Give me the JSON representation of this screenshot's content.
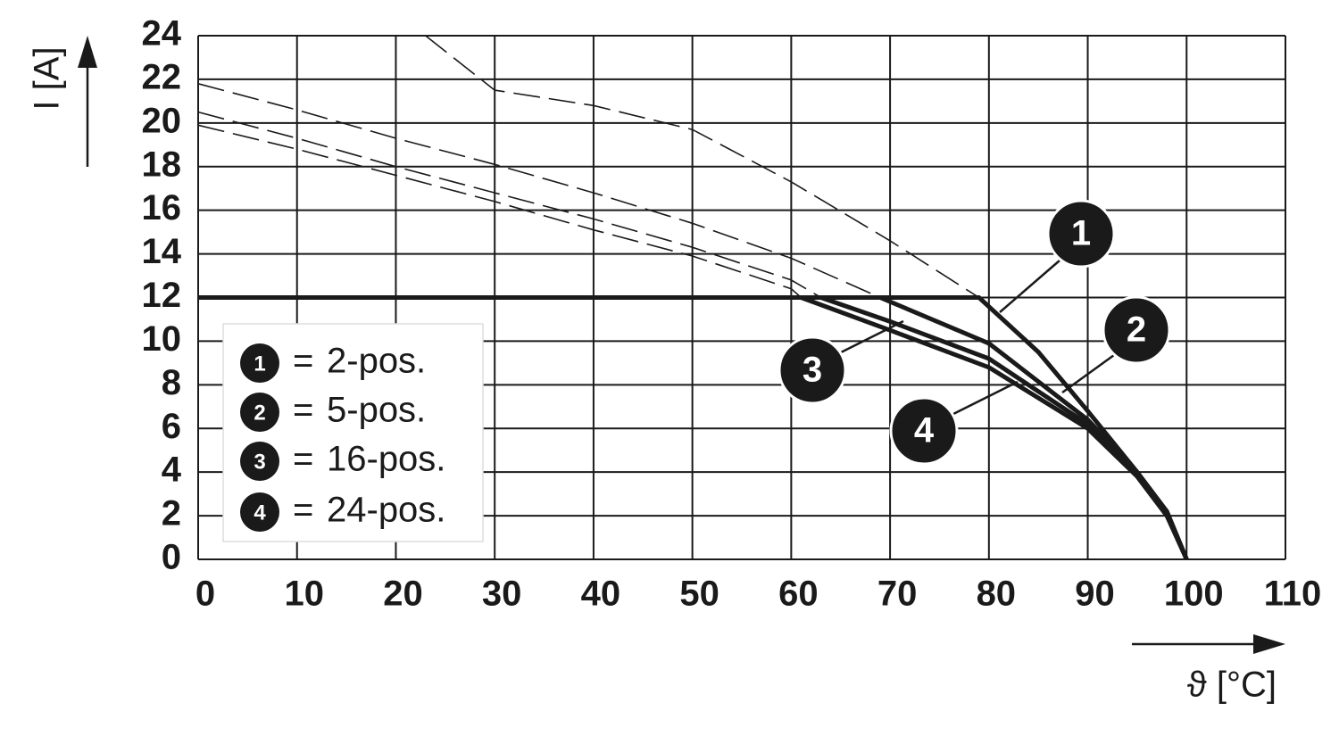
{
  "chart_data": {
    "type": "derating",
    "y_label": "I [A]",
    "x_label": "ϑ [°C]",
    "xlim": [
      0,
      110
    ],
    "ylim": [
      0,
      24
    ],
    "xticks": [
      0,
      10,
      20,
      30,
      40,
      50,
      60,
      70,
      80,
      90,
      100,
      110
    ],
    "yticks": [
      0,
      2,
      4,
      6,
      8,
      10,
      12,
      14,
      16,
      18,
      20,
      22,
      24
    ],
    "grid": true,
    "color": "#1a1a1a",
    "legend_separator": "=",
    "series": [
      {
        "name": "2-pos.",
        "marker": "1",
        "dashed": {
          "x": [
            23,
            30,
            40,
            50,
            60,
            70,
            79
          ],
          "values": [
            24,
            21.5,
            20.8,
            19.7,
            17.3,
            14.6,
            12
          ]
        },
        "solid": {
          "x": [
            0,
            79,
            85,
            90,
            95,
            98,
            100
          ],
          "values": [
            12,
            12,
            9.5,
            6.8,
            4.0,
            2.2,
            0
          ]
        }
      },
      {
        "name": "5-pos.",
        "marker": "2",
        "dashed": {
          "x": [
            0,
            10,
            20,
            30,
            40,
            50,
            60,
            69
          ],
          "values": [
            21.8,
            20.6,
            19.3,
            18.1,
            16.8,
            15.4,
            13.8,
            12
          ]
        },
        "solid": {
          "x": [
            0,
            69,
            80,
            90,
            95,
            98,
            100
          ],
          "values": [
            12,
            12,
            9.9,
            6.4,
            4.0,
            2.2,
            0
          ]
        }
      },
      {
        "name": "16-pos.",
        "marker": "3",
        "dashed": {
          "x": [
            0,
            10,
            20,
            30,
            40,
            50,
            60,
            63
          ],
          "values": [
            20.5,
            19.3,
            18.0,
            16.8,
            15.6,
            14.3,
            12.8,
            12
          ]
        },
        "solid": {
          "x": [
            0,
            63,
            70,
            80,
            90,
            95,
            98,
            100
          ],
          "values": [
            12,
            12,
            10.9,
            9.2,
            6.2,
            4.0,
            2.1,
            0
          ]
        }
      },
      {
        "name": "24-pos.",
        "marker": "4",
        "dashed": {
          "x": [
            0,
            10,
            20,
            30,
            40,
            50,
            60,
            61
          ],
          "values": [
            19.9,
            18.8,
            17.6,
            16.4,
            15.1,
            13.9,
            12.4,
            12
          ]
        },
        "solid": {
          "x": [
            0,
            61,
            70,
            80,
            90,
            95,
            98,
            100
          ],
          "values": [
            12,
            12,
            10.5,
            8.8,
            6.0,
            3.8,
            2.0,
            0
          ]
        }
      }
    ]
  }
}
